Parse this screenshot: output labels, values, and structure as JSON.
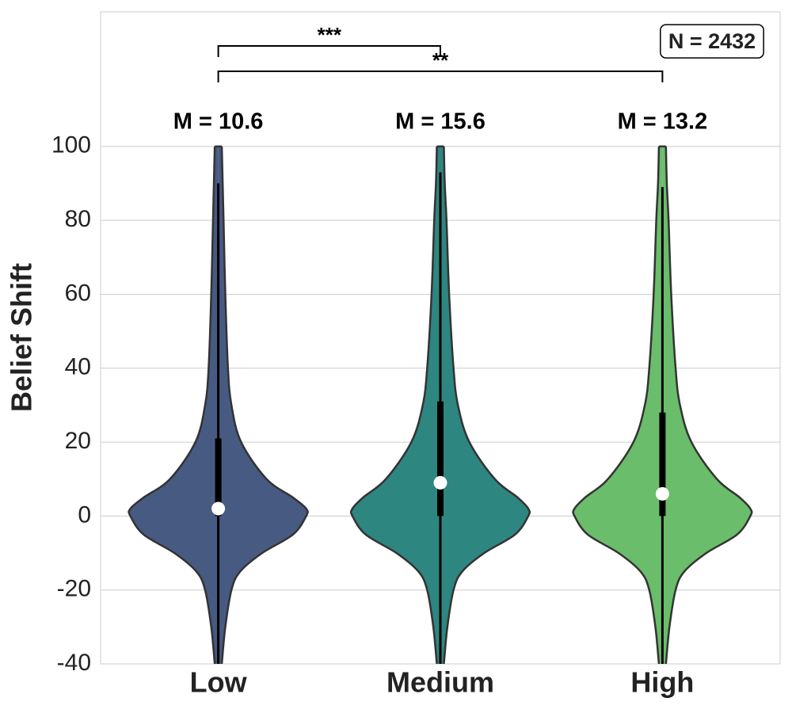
{
  "chart_data": {
    "type": "violin",
    "ylabel": "Belief Shift",
    "categories": [
      "Low",
      "Medium",
      "High"
    ],
    "ylim": [
      -40,
      136.4
    ],
    "yticks": [
      -40,
      -20,
      0,
      20,
      40,
      60,
      80,
      100
    ],
    "grid": true,
    "density_y": [
      100,
      90,
      80,
      60,
      40,
      30,
      20,
      10,
      5,
      2,
      0,
      -5,
      -10,
      -15,
      -20,
      -30,
      -40,
      -45
    ],
    "series": [
      {
        "name": "Low",
        "color": "#475a82",
        "density": [
          0.04,
          0.05,
          0.06,
          0.08,
          0.11,
          0.15,
          0.26,
          0.55,
          0.85,
          1,
          1,
          0.85,
          0.5,
          0.25,
          0.15,
          0.08,
          0.04,
          0.02
        ],
        "median": 2,
        "q1": 0,
        "q3": 21,
        "whisker_low": -45,
        "whisker_high": 90,
        "mean": 10.6,
        "mean_label": "M = 10.6"
      },
      {
        "name": "Medium",
        "color": "#2e8680",
        "density": [
          0.04,
          0.05,
          0.07,
          0.1,
          0.15,
          0.2,
          0.33,
          0.62,
          0.88,
          1,
          1,
          0.85,
          0.5,
          0.25,
          0.15,
          0.08,
          0.04,
          0.02
        ],
        "median": 9,
        "q1": 0,
        "q3": 31,
        "whisker_low": -45,
        "whisker_high": 93,
        "mean": 15.6,
        "mean_label": "M = 15.6"
      },
      {
        "name": "High",
        "color": "#6abd6a",
        "density": [
          0.04,
          0.05,
          0.07,
          0.1,
          0.15,
          0.2,
          0.33,
          0.62,
          0.88,
          1,
          1,
          0.85,
          0.5,
          0.25,
          0.15,
          0.08,
          0.04,
          0.02
        ],
        "median": 6,
        "q1": 0,
        "q3": 28,
        "whisker_low": -45,
        "whisker_high": 89,
        "mean": 13.2,
        "mean_label": "M = 13.2"
      }
    ],
    "significance": [
      {
        "label": "***",
        "from": "Low",
        "to": "Medium"
      },
      {
        "label": "**",
        "from": "Low",
        "to": "High"
      }
    ],
    "annotation": "N = 2432"
  }
}
